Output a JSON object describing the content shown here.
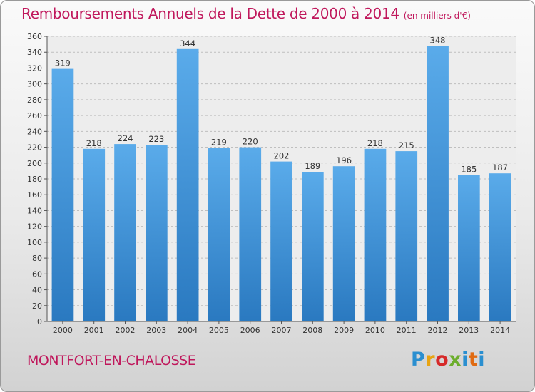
{
  "colors": {
    "accent": "#c0185c",
    "bar_light": "#5aabea",
    "bar_dark": "#2a79c0"
  },
  "header": {
    "title": "Remboursements Annuels de la Dette de 2000 à 2014",
    "unit": "(en milliers d'€)"
  },
  "footer": {
    "commune": "MONTFORT-EN-CHALOSSE",
    "logo": "Proxiti"
  },
  "chart_data": {
    "type": "bar",
    "title": "Remboursements Annuels de la Dette de 2000 à 2014",
    "subtitle": "(en milliers d'€)",
    "xlabel": "",
    "ylabel": "",
    "categories": [
      "2000",
      "2001",
      "2002",
      "2003",
      "2004",
      "2005",
      "2006",
      "2007",
      "2008",
      "2009",
      "2010",
      "2011",
      "2012",
      "2013",
      "2014"
    ],
    "values": [
      319,
      218,
      224,
      223,
      344,
      219,
      220,
      202,
      189,
      196,
      218,
      215,
      348,
      185,
      187
    ],
    "ylim": [
      0,
      360
    ],
    "ytick_step": 20,
    "grid": true,
    "legend": "none"
  }
}
